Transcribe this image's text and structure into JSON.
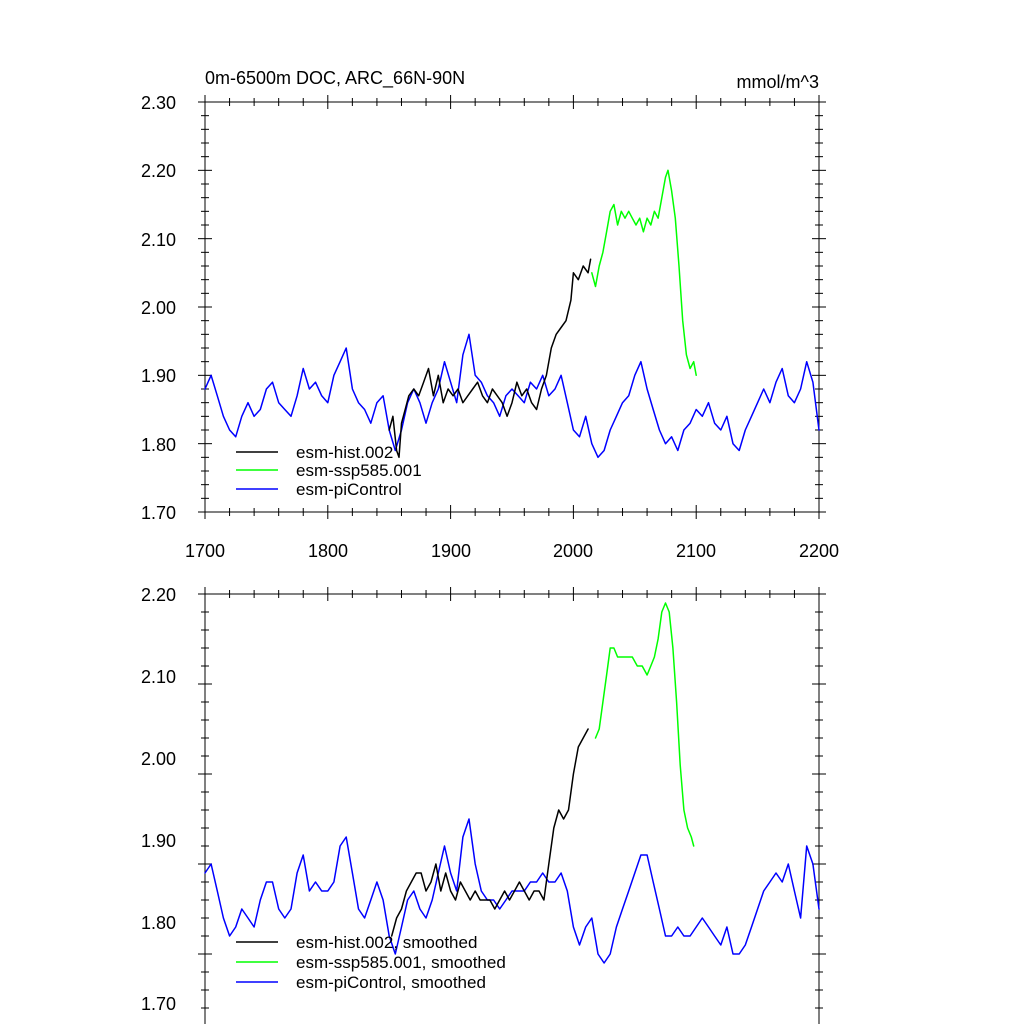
{
  "chart_data": [
    {
      "type": "line",
      "title": "0m-6500m DOC, ARC_66N-90N",
      "units": "mmol/m^3",
      "xlim": [
        1700,
        2200
      ],
      "ylim": [
        1.7,
        2.3
      ],
      "x_ticks": [
        "1700",
        "1800",
        "1900",
        "2000",
        "2100",
        "2200"
      ],
      "y_ticks": [
        "1.70",
        "1.80",
        "1.90",
        "2.00",
        "2.10",
        "2.20",
        "2.30"
      ],
      "grid": false,
      "legend_position": "bottom-left",
      "series": [
        {
          "name": "esm-hist.002",
          "color": "#000000",
          "x": [
            1850,
            1853,
            1856,
            1858,
            1860,
            1863,
            1866,
            1870,
            1874,
            1878,
            1882,
            1886,
            1890,
            1894,
            1898,
            1902,
            1906,
            1910,
            1914,
            1918,
            1922,
            1926,
            1930,
            1934,
            1938,
            1942,
            1946,
            1950,
            1954,
            1958,
            1962,
            1966,
            1970,
            1974,
            1978,
            1982,
            1986,
            1990,
            1994,
            1998,
            2000,
            2004,
            2008,
            2012,
            2014
          ],
          "y": [
            1.82,
            1.84,
            1.79,
            1.78,
            1.83,
            1.85,
            1.87,
            1.88,
            1.87,
            1.89,
            1.91,
            1.87,
            1.9,
            1.86,
            1.88,
            1.87,
            1.88,
            1.86,
            1.87,
            1.88,
            1.89,
            1.87,
            1.86,
            1.88,
            1.87,
            1.86,
            1.84,
            1.86,
            1.89,
            1.87,
            1.88,
            1.86,
            1.85,
            1.88,
            1.9,
            1.94,
            1.96,
            1.97,
            1.98,
            2.01,
            2.05,
            2.04,
            2.06,
            2.05,
            2.07
          ]
        },
        {
          "name": "esm-ssp585.001",
          "color": "#00ff00",
          "x": [
            2015,
            2018,
            2021,
            2024,
            2027,
            2030,
            2033,
            2036,
            2039,
            2042,
            2045,
            2048,
            2051,
            2054,
            2057,
            2060,
            2063,
            2066,
            2069,
            2072,
            2075,
            2077,
            2080,
            2083,
            2086,
            2089,
            2092,
            2095,
            2098,
            2100
          ],
          "y": [
            2.05,
            2.03,
            2.06,
            2.08,
            2.11,
            2.14,
            2.15,
            2.12,
            2.14,
            2.13,
            2.14,
            2.13,
            2.12,
            2.13,
            2.11,
            2.13,
            2.12,
            2.14,
            2.13,
            2.16,
            2.19,
            2.2,
            2.17,
            2.13,
            2.06,
            1.98,
            1.93,
            1.91,
            1.92,
            1.9
          ]
        },
        {
          "name": "esm-piControl",
          "color": "#0000ff",
          "x": [
            1700,
            1705,
            1710,
            1715,
            1720,
            1725,
            1730,
            1735,
            1740,
            1745,
            1750,
            1755,
            1760,
            1765,
            1770,
            1775,
            1780,
            1785,
            1790,
            1795,
            1800,
            1805,
            1810,
            1815,
            1820,
            1825,
            1830,
            1835,
            1840,
            1845,
            1850,
            1855,
            1860,
            1865,
            1870,
            1875,
            1880,
            1885,
            1890,
            1895,
            1900,
            1905,
            1910,
            1915,
            1920,
            1925,
            1930,
            1935,
            1940,
            1945,
            1950,
            1955,
            1960,
            1965,
            1970,
            1975,
            1980,
            1985,
            1990,
            1995,
            2000,
            2005,
            2010,
            2015,
            2020,
            2025,
            2030,
            2035,
            2040,
            2045,
            2050,
            2055,
            2060,
            2065,
            2070,
            2075,
            2080,
            2085,
            2090,
            2095,
            2100,
            2105,
            2110,
            2115,
            2120,
            2125,
            2130,
            2135,
            2140,
            2145,
            2150,
            2155,
            2160,
            2165,
            2170,
            2175,
            2180,
            2185,
            2190,
            2195,
            2200
          ],
          "y": [
            1.88,
            1.9,
            1.87,
            1.84,
            1.82,
            1.81,
            1.84,
            1.86,
            1.84,
            1.85,
            1.88,
            1.89,
            1.86,
            1.85,
            1.84,
            1.87,
            1.91,
            1.88,
            1.89,
            1.87,
            1.86,
            1.9,
            1.92,
            1.94,
            1.88,
            1.86,
            1.85,
            1.83,
            1.86,
            1.87,
            1.82,
            1.79,
            1.82,
            1.86,
            1.88,
            1.86,
            1.83,
            1.86,
            1.88,
            1.92,
            1.89,
            1.86,
            1.93,
            1.96,
            1.9,
            1.89,
            1.87,
            1.86,
            1.84,
            1.87,
            1.88,
            1.87,
            1.86,
            1.89,
            1.88,
            1.9,
            1.87,
            1.88,
            1.9,
            1.86,
            1.82,
            1.81,
            1.84,
            1.8,
            1.78,
            1.79,
            1.82,
            1.84,
            1.86,
            1.87,
            1.9,
            1.92,
            1.88,
            1.85,
            1.82,
            1.8,
            1.81,
            1.79,
            1.82,
            1.83,
            1.85,
            1.84,
            1.86,
            1.83,
            1.82,
            1.84,
            1.8,
            1.79,
            1.82,
            1.84,
            1.86,
            1.88,
            1.86,
            1.89,
            1.91,
            1.87,
            1.86,
            1.88,
            1.92,
            1.89,
            1.82
          ]
        }
      ]
    },
    {
      "type": "line",
      "xlim": [
        1700,
        2200
      ],
      "ylim": [
        1.7,
        2.2
      ],
      "y_ticks": [
        "1.70",
        "1.80",
        "1.90",
        "2.00",
        "2.10",
        "2.20"
      ],
      "grid": false,
      "legend_position": "bottom-left",
      "series": [
        {
          "name": "esm-hist.002, smoothed",
          "color": "#000000",
          "x": [
            1852,
            1856,
            1860,
            1864,
            1868,
            1872,
            1876,
            1880,
            1884,
            1888,
            1892,
            1896,
            1900,
            1904,
            1908,
            1912,
            1916,
            1920,
            1924,
            1928,
            1932,
            1936,
            1940,
            1944,
            1948,
            1952,
            1956,
            1960,
            1964,
            1968,
            1972,
            1976,
            1980,
            1984,
            1988,
            1992,
            1996,
            2000,
            2004,
            2008,
            2012
          ],
          "y": [
            1.82,
            1.84,
            1.85,
            1.87,
            1.88,
            1.89,
            1.89,
            1.87,
            1.88,
            1.9,
            1.87,
            1.89,
            1.87,
            1.86,
            1.88,
            1.87,
            1.86,
            1.87,
            1.86,
            1.86,
            1.86,
            1.85,
            1.86,
            1.87,
            1.86,
            1.87,
            1.88,
            1.87,
            1.86,
            1.87,
            1.87,
            1.86,
            1.9,
            1.94,
            1.96,
            1.95,
            1.96,
            2.0,
            2.03,
            2.04,
            2.05
          ]
        },
        {
          "name": "esm-ssp585.001, smoothed",
          "color": "#00ff00",
          "x": [
            2018,
            2021,
            2024,
            2027,
            2030,
            2033,
            2036,
            2040,
            2044,
            2048,
            2052,
            2056,
            2060,
            2063,
            2066,
            2069,
            2072,
            2075,
            2078,
            2081,
            2084,
            2087,
            2090,
            2093,
            2096,
            2098
          ],
          "y": [
            2.04,
            2.05,
            2.08,
            2.11,
            2.14,
            2.14,
            2.13,
            2.13,
            2.13,
            2.13,
            2.12,
            2.12,
            2.11,
            2.12,
            2.13,
            2.15,
            2.18,
            2.19,
            2.18,
            2.14,
            2.08,
            2.01,
            1.96,
            1.94,
            1.93,
            1.92
          ]
        },
        {
          "name": "esm-piControl, smoothed",
          "color": "#0000ff",
          "x": [
            1700,
            1705,
            1710,
            1715,
            1720,
            1725,
            1730,
            1735,
            1740,
            1745,
            1750,
            1755,
            1760,
            1765,
            1770,
            1775,
            1780,
            1785,
            1790,
            1795,
            1800,
            1805,
            1810,
            1815,
            1820,
            1825,
            1830,
            1835,
            1840,
            1845,
            1850,
            1855,
            1860,
            1865,
            1870,
            1875,
            1880,
            1885,
            1890,
            1895,
            1900,
            1905,
            1910,
            1915,
            1920,
            1925,
            1930,
            1935,
            1940,
            1945,
            1950,
            1955,
            1960,
            1965,
            1970,
            1975,
            1980,
            1985,
            1990,
            1995,
            2000,
            2005,
            2010,
            2015,
            2020,
            2025,
            2030,
            2035,
            2040,
            2045,
            2050,
            2055,
            2060,
            2065,
            2070,
            2075,
            2080,
            2085,
            2090,
            2095,
            2100,
            2105,
            2110,
            2115,
            2120,
            2125,
            2130,
            2135,
            2140,
            2145,
            2150,
            2155,
            2160,
            2165,
            2170,
            2175,
            2180,
            2185,
            2190,
            2195,
            2200
          ],
          "y": [
            1.89,
            1.9,
            1.87,
            1.84,
            1.82,
            1.83,
            1.85,
            1.84,
            1.83,
            1.86,
            1.88,
            1.88,
            1.85,
            1.84,
            1.85,
            1.89,
            1.91,
            1.87,
            1.88,
            1.87,
            1.87,
            1.88,
            1.92,
            1.93,
            1.89,
            1.85,
            1.84,
            1.86,
            1.88,
            1.86,
            1.82,
            1.8,
            1.83,
            1.86,
            1.87,
            1.85,
            1.84,
            1.86,
            1.89,
            1.92,
            1.89,
            1.87,
            1.93,
            1.95,
            1.9,
            1.87,
            1.86,
            1.86,
            1.85,
            1.86,
            1.87,
            1.87,
            1.87,
            1.88,
            1.88,
            1.89,
            1.88,
            1.88,
            1.89,
            1.87,
            1.83,
            1.81,
            1.83,
            1.84,
            1.8,
            1.79,
            1.8,
            1.83,
            1.85,
            1.87,
            1.89,
            1.91,
            1.91,
            1.88,
            1.85,
            1.82,
            1.82,
            1.83,
            1.82,
            1.82,
            1.83,
            1.84,
            1.83,
            1.82,
            1.81,
            1.83,
            1.8,
            1.8,
            1.81,
            1.83,
            1.85,
            1.87,
            1.88,
            1.89,
            1.88,
            1.9,
            1.87,
            1.84,
            1.92,
            1.9,
            1.85
          ]
        }
      ]
    }
  ]
}
